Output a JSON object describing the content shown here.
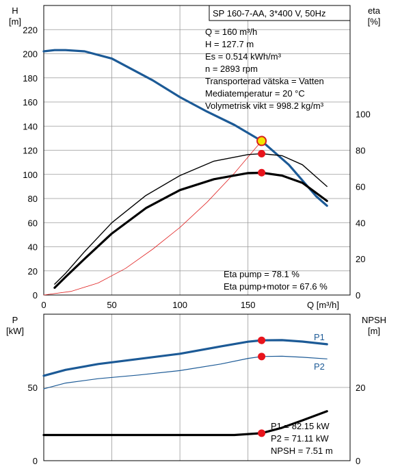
{
  "chart_data": [
    {
      "type": "line",
      "title": "SP 160-7-AA, 3*400 V, 50Hz",
      "ylabel_left": [
        "H",
        "[m]"
      ],
      "ylabel_right": [
        "eta",
        "[%]"
      ],
      "xlabel": "Q [m³/h]",
      "xlim": [
        0,
        225
      ],
      "ylim_left": [
        0,
        240
      ],
      "ylim_right": [
        0,
        160
      ],
      "x_ticks": [
        "0",
        "50",
        "100",
        "150"
      ],
      "y_ticks_left": [
        "0",
        "20",
        "40",
        "60",
        "80",
        "100",
        "120",
        "140",
        "160",
        "180",
        "200",
        "220"
      ],
      "y_ticks_right": [
        "0",
        "20",
        "40",
        "60",
        "80",
        "100"
      ],
      "grid": true,
      "info": [
        "Q = 160 m³/h",
        "H = 127.7 m",
        "Es = 0.514 kWh/m³",
        "n = 2893 rpm",
        "Transporterad vätska = Vatten",
        "Mediatemperatur = 20 °C",
        "Volymetrisk vikt = 998.2 kg/m³"
      ],
      "annotations": [
        "Eta pump = 78.1 %",
        "Eta pump+motor = 67.6 %"
      ],
      "operating_point": {
        "q": 160,
        "h": 127.7,
        "eta_pump": 78.1,
        "eta_pump_motor": 67.6
      },
      "series": [
        {
          "axis": "left",
          "color": "#1c5a96",
          "width": 3.2,
          "x": [
            0,
            8,
            16,
            30,
            50,
            80,
            100,
            120,
            140,
            160,
            180,
            200,
            208
          ],
          "y": [
            202,
            203,
            203,
            202,
            196,
            178,
            164,
            152,
            141,
            127.7,
            108,
            82,
            74
          ]
        },
        {
          "axis": "left",
          "color": "#e02020",
          "width": 0.8,
          "x": [
            0,
            20,
            40,
            60,
            80,
            100,
            120,
            140,
            160
          ],
          "y": [
            0,
            3,
            10,
            22,
            38,
            56,
            77,
            101,
            127.7
          ]
        },
        {
          "axis": "right",
          "color": "#000000",
          "width": 1.4,
          "x": [
            8,
            16,
            30,
            50,
            75,
            100,
            125,
            150,
            160,
            175,
            190,
            208
          ],
          "y": [
            6,
            12,
            24,
            40,
            55,
            66,
            74,
            77.6,
            78.1,
            77,
            72,
            60
          ]
        },
        {
          "axis": "right",
          "color": "#000000",
          "width": 3.2,
          "x": [
            8,
            16,
            30,
            50,
            75,
            100,
            125,
            150,
            160,
            175,
            190,
            208
          ],
          "y": [
            4,
            10,
            20,
            34,
            48,
            58,
            64,
            67.4,
            67.6,
            66,
            62,
            52
          ]
        }
      ]
    },
    {
      "type": "line",
      "ylabel_left": [
        "P",
        "[kW]"
      ],
      "ylabel_right": [
        "NPSH",
        "[m]"
      ],
      "xlim": [
        0,
        225
      ],
      "ylim_left": [
        0,
        100
      ],
      "ylim_right": [
        0,
        40
      ],
      "y_ticks_left": [
        "0",
        "50"
      ],
      "y_ticks_right": [
        "0",
        "20"
      ],
      "grid": true,
      "annotations": [
        "P1 = 82.15 kW",
        "P2 = 71.11 kW",
        "NPSH = 7.51 m"
      ],
      "series_labels": [
        "P1",
        "P2"
      ],
      "operating_point": {
        "q": 160,
        "p1": 82.15,
        "p2": 71.11,
        "npsh": 7.51
      },
      "series": [
        {
          "name": "P1",
          "axis": "left",
          "color": "#1c5a96",
          "width": 3.2,
          "x": [
            0,
            16,
            40,
            70,
            100,
            130,
            150,
            160,
            175,
            190,
            208
          ],
          "y": [
            58,
            62,
            66,
            69.5,
            73,
            78,
            81.2,
            82.15,
            82.3,
            81.3,
            79.5
          ]
        },
        {
          "name": "P2",
          "axis": "left",
          "color": "#1c5a96",
          "width": 1.2,
          "x": [
            0,
            16,
            40,
            70,
            100,
            130,
            150,
            160,
            175,
            190,
            208
          ],
          "y": [
            49,
            53,
            56,
            58.5,
            61.5,
            66,
            69.8,
            71.11,
            71.3,
            70.6,
            69.5
          ]
        },
        {
          "name": "NPSH",
          "axis": "right",
          "color": "#000000",
          "width": 3.2,
          "x": [
            0,
            16,
            40,
            70,
            100,
            120,
            140,
            160,
            175,
            190,
            208
          ],
          "y": [
            7,
            7,
            7,
            7,
            7,
            7,
            7,
            7.51,
            9,
            11,
            13.5
          ]
        }
      ]
    }
  ]
}
